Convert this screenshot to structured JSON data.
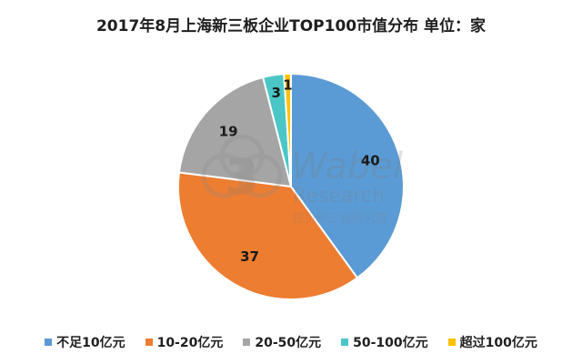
{
  "chart_data": {
    "type": "pie",
    "title": "2017年8月上海新三板企业TOP100市值分布  单位：家",
    "categories": [
      "不足10亿元",
      "10-20亿元",
      "20-50亿元",
      "50-100亿元",
      "超过100亿元"
    ],
    "values": [
      40,
      37,
      19,
      3,
      1
    ],
    "colors": [
      "#5b9bd5",
      "#ed7d31",
      "#a5a5a5",
      "#4bc6c6",
      "#ffc000"
    ],
    "legend_position": "bottom"
  },
  "watermark": {
    "brand": "Wabel",
    "sub": "Research",
    "cn": "挖贝新三板研究院",
    "logo_digit": "3"
  }
}
